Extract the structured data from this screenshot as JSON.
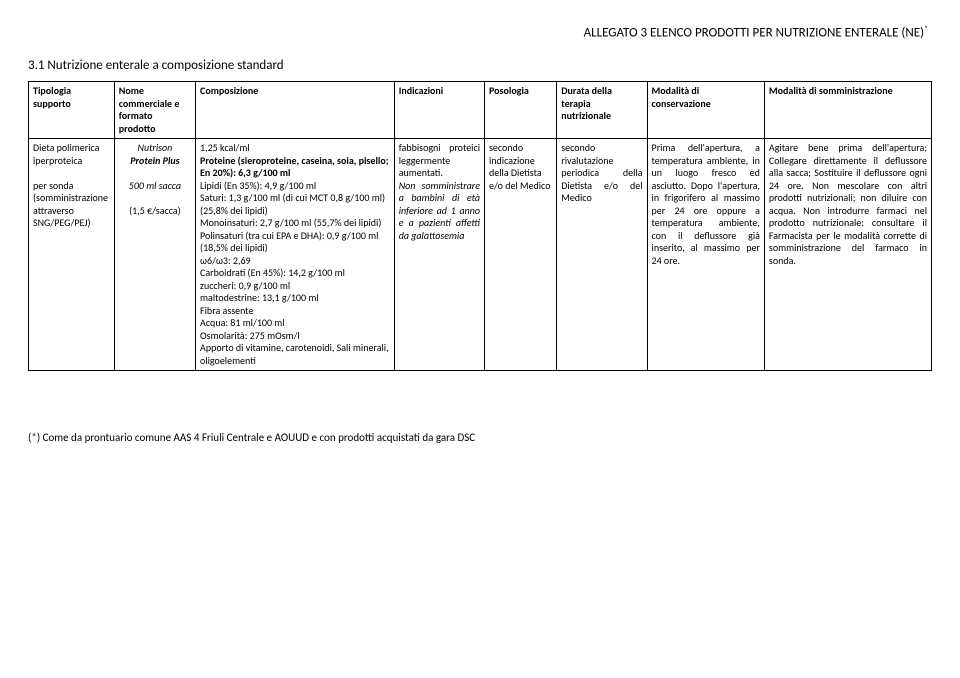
{
  "header": {
    "title_prefix": "ALLEGATO 3 ELENCO PRODOTTI PER NUTRIZIONE ENTERALE (NE)",
    "sup": "*"
  },
  "section": {
    "title": "3.1 Nutrizione enterale a composizione standard"
  },
  "table": {
    "headers": {
      "c1": "Tipologia supporto",
      "c2": "Nome commerciale e formato prodotto",
      "c3": "Composizione",
      "c4": "Indicazioni",
      "c5": "Posologia",
      "c6": "Durata della terapia nutrizionale",
      "c7": "Modalità di conservazione",
      "c8": "Modalità di somministrazione"
    },
    "row": {
      "tipologia": "Dieta polimerica iperproteica\n\nper sonda\n(somministrazione attraverso SNG/PEG/PEJ)",
      "nome": {
        "brand": "Nutrison",
        "product": "Protein Plus",
        "format": "500 ml sacca",
        "price": "(1,5 €/sacca)"
      },
      "composizione": "1,25 kcal/ml\nProteine (sieroproteine, caseina, soia, pisello; En 20%): 6,3 g/100 ml\nLipidi (En 35%): 4,9 g/100 ml\nSaturi: 1,3 g/100 ml (di cui MCT 0,8 g/100 ml) (25,8% dei lipidi)\nMonoinsaturi: 2,7 g/100 ml (55,7% dei lipidi)\nPolinsaturi (tra cui EPA e DHA): 0,9 g/100 ml (18,5% dei lipidi)\nω6/ω3: 2,69\nCarboidrati (En 45%): 14,2 g/100 ml\nzuccheri: 0,9 g/100 ml\nmaltodestrine: 13,1 g/100 ml\nFibra assente\nAcqua: 81 ml/100 ml\nOsmolarità: 275 mOsm/l\nApporto di vitamine, carotenoidi, Sali minerali, oligoelementi",
      "indicazioni_plain": "fabbisogni proteici leggermente aumentati.",
      "indicazioni_italic": "Non somministrare a bambini di età inferiore ad 1 anno e a pazienti affetti da galattosemia",
      "posologia": "secondo indicazione della Dietista e/o del Medico",
      "durata": "secondo rivalutazione periodica della Dietista e/o del Medico",
      "conservazione": "Prima dell'apertura, a temperatura ambiente, in un luogo fresco ed asciutto. Dopo l'apertura, in frigorifero al massimo per 24 ore oppure a temperatura ambiente, con il deflussore già inserito, al massimo per 24 ore.",
      "somministrazione": "Agitare bene prima dell'apertura; Collegare direttamente il deflussore alla sacca; Sostituire il deflussore ogni 24 ore. Non mescolare con altri prodotti nutrizionali; non diluire con acqua. Non introdurre farmaci nel prodotto nutrizionale: consultare il Farmacista per le modalità corrette di somministrazione del farmaco in sonda."
    }
  },
  "footnote": "(*) Come da prontuario comune AAS 4 Friuli Centrale e AOUUD e con prodotti acquistati da gara DSC"
}
